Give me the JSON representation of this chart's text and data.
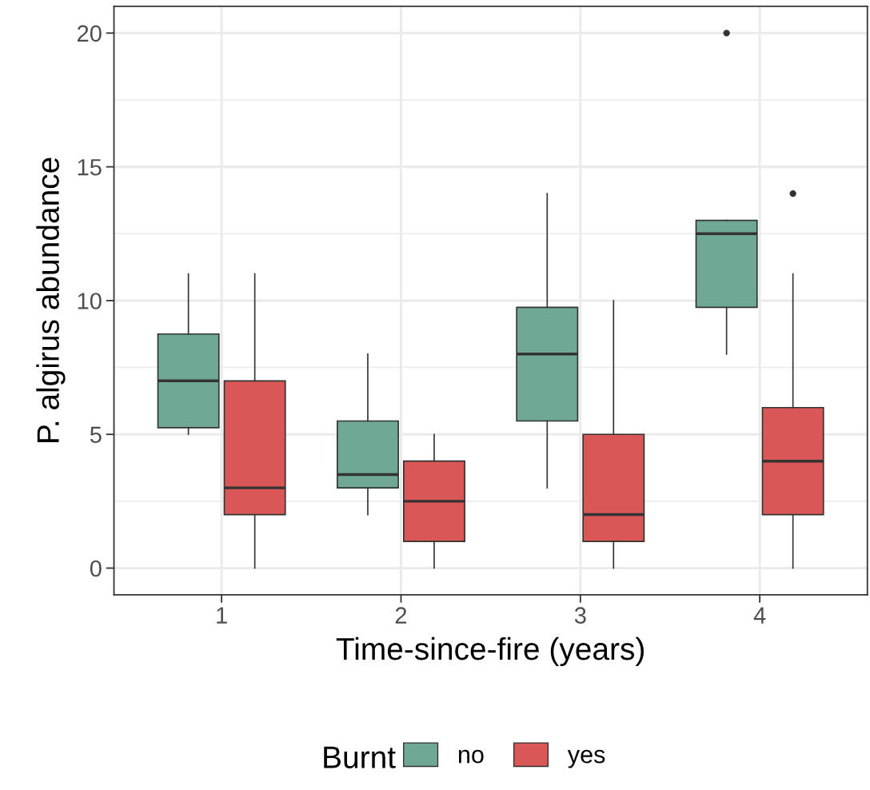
{
  "chart_data": {
    "type": "box",
    "xlabel": "Time-since-fire (years)",
    "ylabel": "P. algirus abundance",
    "legend_title": "Burnt",
    "categories": [
      "1",
      "2",
      "3",
      "4"
    ],
    "ylim": [
      -1,
      21
    ],
    "yticks": [
      0,
      5,
      10,
      15,
      20
    ],
    "grid": true,
    "legend": "bottom",
    "series": [
      {
        "name": "no",
        "color": "#6fa894",
        "boxes": [
          {
            "low": 5,
            "q1": 5.25,
            "median": 7,
            "q3": 8.75,
            "high": 11
          },
          {
            "low": 2,
            "q1": 3,
            "median": 3.5,
            "q3": 5.5,
            "high": 8
          },
          {
            "low": 3,
            "q1": 5.5,
            "median": 8,
            "q3": 9.75,
            "high": 14
          },
          {
            "low": 8,
            "q1": 9.75,
            "median": 12.5,
            "q3": 13,
            "high": 13,
            "outliers": [
              20
            ]
          }
        ]
      },
      {
        "name": "yes",
        "color": "#da5757",
        "boxes": [
          {
            "low": 0,
            "q1": 2,
            "median": 3,
            "q3": 7,
            "high": 11
          },
          {
            "low": 0,
            "q1": 1,
            "median": 2.5,
            "q3": 4,
            "high": 5
          },
          {
            "low": 0,
            "q1": 1,
            "median": 2,
            "q3": 5,
            "high": 10
          },
          {
            "low": 0,
            "q1": 2,
            "median": 4,
            "q3": 6,
            "high": 11,
            "outliers": [
              14
            ]
          }
        ]
      }
    ]
  }
}
